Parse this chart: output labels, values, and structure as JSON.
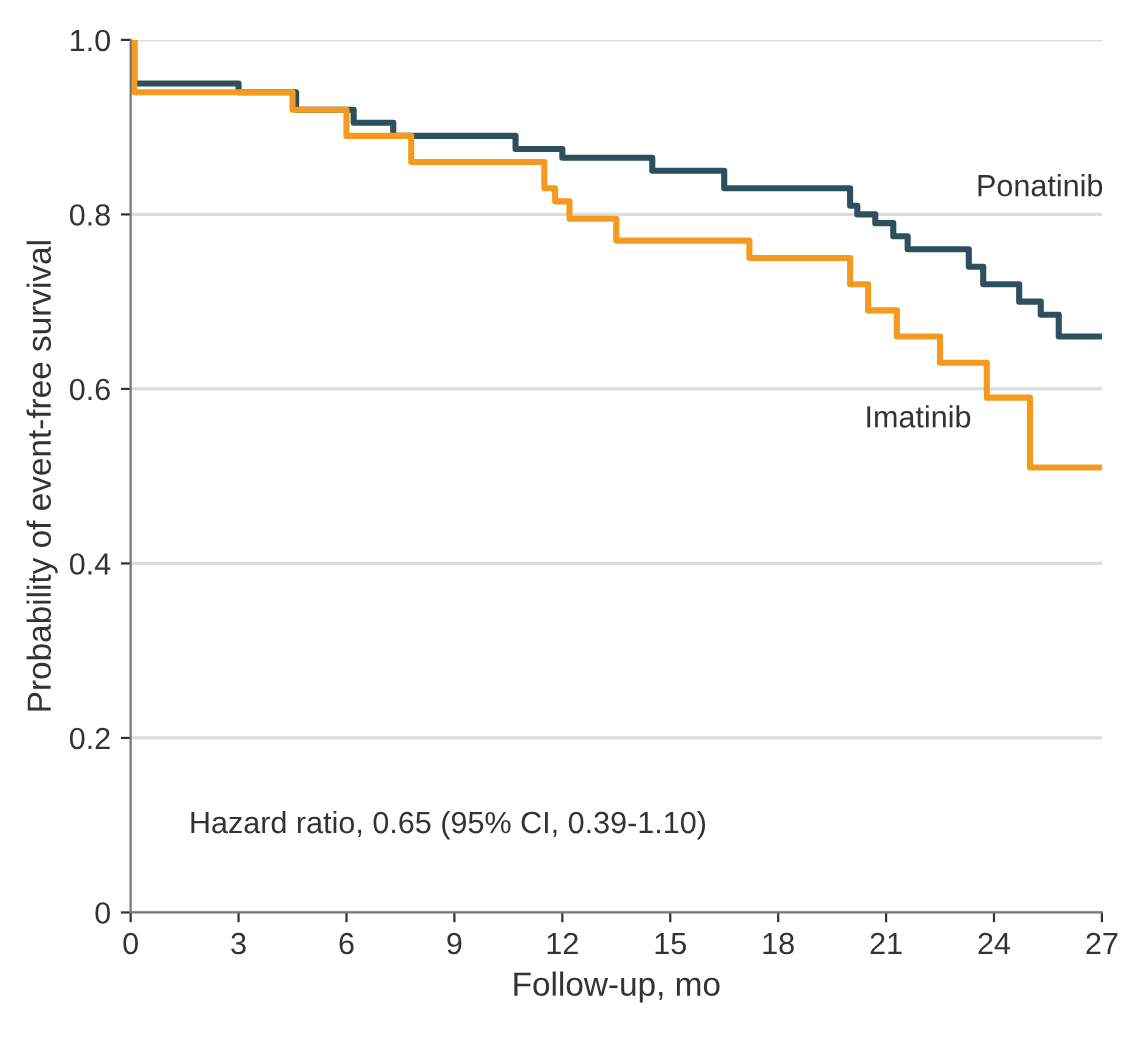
{
  "chart_data": {
    "type": "step",
    "xlabel": "Follow-up, mo",
    "ylabel": "Probability of event-free survival",
    "xlim": [
      0,
      27
    ],
    "xticks": [
      0,
      3,
      6,
      9,
      12,
      15,
      18,
      21,
      24,
      27
    ],
    "ylim": [
      0,
      1.0
    ],
    "yticks": [
      0,
      {
        "value": 0.2,
        "label": "0.2"
      },
      {
        "value": 0.4,
        "label": "0.4"
      },
      {
        "value": 0.6,
        "label": "0.6"
      },
      {
        "value": 0.8,
        "label": "0.8"
      },
      {
        "value": 1.0,
        "label": "1.0"
      }
    ],
    "grid": "y",
    "legend": false,
    "annotations": [
      "Hazard ratio, 0.65 (95% CI, 0.39-1.10)"
    ],
    "series": [
      {
        "name": "Ponatinib",
        "color": "#2e4f5c",
        "x": [
          0,
          0.1,
          3.0,
          4.6,
          6.2,
          7.3,
          10.7,
          12.0,
          14.5,
          16.5,
          20.0,
          20.2,
          20.7,
          21.2,
          21.6,
          23.3,
          23.7,
          24.7,
          25.3,
          25.8,
          27
        ],
        "values": [
          1.0,
          0.95,
          0.94,
          0.92,
          0.905,
          0.89,
          0.875,
          0.865,
          0.85,
          0.83,
          0.81,
          0.8,
          0.79,
          0.775,
          0.76,
          0.74,
          0.72,
          0.7,
          0.685,
          0.66,
          0.66
        ]
      },
      {
        "name": "Imatinib",
        "color": "#f59a1f",
        "x": [
          0,
          0.1,
          4.5,
          6.0,
          7.8,
          11.5,
          11.8,
          12.2,
          13.5,
          17.2,
          20.0,
          20.5,
          21.3,
          22.5,
          23.8,
          25.0,
          27
        ],
        "values": [
          1.0,
          0.94,
          0.92,
          0.89,
          0.86,
          0.83,
          0.815,
          0.795,
          0.77,
          0.75,
          0.72,
          0.69,
          0.66,
          0.63,
          0.59,
          0.51,
          0.51
        ]
      }
    ]
  }
}
